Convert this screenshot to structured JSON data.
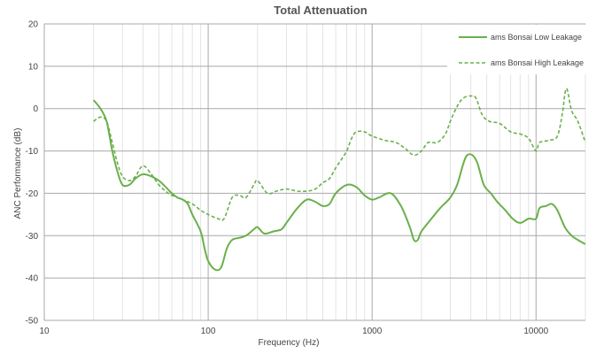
{
  "chart_data": {
    "type": "line",
    "title": "Total Attenuation",
    "xlabel": "Frequency (Hz)",
    "ylabel": "ANC Performance (dB)",
    "x_scale": "log",
    "xlim": [
      10,
      20000
    ],
    "ylim": [
      -50,
      20
    ],
    "x_ticks": [
      10,
      100,
      1000,
      10000
    ],
    "x_tick_labels": [
      "10",
      "100",
      "1000",
      "10000"
    ],
    "y_ticks": [
      -50,
      -40,
      -30,
      -20,
      -10,
      0,
      10,
      20
    ],
    "y_tick_labels": [
      "-50",
      "-40",
      "-30",
      "-20",
      "-10",
      "0",
      "10",
      "20"
    ],
    "grid": true,
    "legend_position": "top-right",
    "series": [
      {
        "name": "ams Bonsai Low Leakage",
        "style": "solid",
        "color": "#6ab04c",
        "points": [
          [
            20,
            2
          ],
          [
            22,
            0
          ],
          [
            24,
            -3
          ],
          [
            26,
            -10
          ],
          [
            28,
            -15
          ],
          [
            30,
            -18
          ],
          [
            33,
            -18
          ],
          [
            36,
            -16.5
          ],
          [
            40,
            -15.5
          ],
          [
            45,
            -16
          ],
          [
            50,
            -17
          ],
          [
            55,
            -18.5
          ],
          [
            60,
            -20
          ],
          [
            65,
            -21
          ],
          [
            70,
            -21.5
          ],
          [
            75,
            -22.5
          ],
          [
            80,
            -25
          ],
          [
            90,
            -29
          ],
          [
            95,
            -33
          ],
          [
            100,
            -36
          ],
          [
            110,
            -38
          ],
          [
            120,
            -37.5
          ],
          [
            130,
            -33
          ],
          [
            140,
            -31
          ],
          [
            155,
            -30.5
          ],
          [
            170,
            -30
          ],
          [
            190,
            -28.5
          ],
          [
            200,
            -28
          ],
          [
            220,
            -29.5
          ],
          [
            250,
            -29
          ],
          [
            280,
            -28.5
          ],
          [
            300,
            -27
          ],
          [
            350,
            -23.5
          ],
          [
            400,
            -21.5
          ],
          [
            450,
            -22
          ],
          [
            500,
            -23
          ],
          [
            550,
            -22.5
          ],
          [
            600,
            -20
          ],
          [
            700,
            -18
          ],
          [
            800,
            -18.5
          ],
          [
            900,
            -20.5
          ],
          [
            1000,
            -21.5
          ],
          [
            1100,
            -21
          ],
          [
            1300,
            -20
          ],
          [
            1500,
            -23
          ],
          [
            1700,
            -28
          ],
          [
            1800,
            -31
          ],
          [
            1900,
            -31
          ],
          [
            2000,
            -29
          ],
          [
            2300,
            -26
          ],
          [
            2600,
            -23.5
          ],
          [
            3000,
            -21
          ],
          [
            3300,
            -18
          ],
          [
            3600,
            -13
          ],
          [
            3800,
            -11
          ],
          [
            4100,
            -11
          ],
          [
            4400,
            -13
          ],
          [
            4800,
            -18
          ],
          [
            5300,
            -20
          ],
          [
            5800,
            -22
          ],
          [
            6500,
            -24
          ],
          [
            7200,
            -26
          ],
          [
            8000,
            -27
          ],
          [
            9000,
            -26
          ],
          [
            10000,
            -26
          ],
          [
            10500,
            -23.5
          ],
          [
            11500,
            -23
          ],
          [
            12500,
            -22.5
          ],
          [
            13500,
            -24
          ],
          [
            15000,
            -28
          ],
          [
            16500,
            -30
          ],
          [
            18000,
            -31
          ],
          [
            20000,
            -32
          ]
        ]
      },
      {
        "name": "ams Bonsai High Leakage",
        "style": "dashed",
        "color": "#6ab04c",
        "points": [
          [
            20,
            -3
          ],
          [
            22,
            -2
          ],
          [
            24,
            -3
          ],
          [
            26,
            -8
          ],
          [
            28,
            -13
          ],
          [
            30,
            -16
          ],
          [
            33,
            -17
          ],
          [
            36,
            -16
          ],
          [
            40,
            -13.5
          ],
          [
            45,
            -15.5
          ],
          [
            50,
            -18
          ],
          [
            55,
            -19.5
          ],
          [
            60,
            -20.5
          ],
          [
            70,
            -21.5
          ],
          [
            80,
            -22.5
          ],
          [
            90,
            -24
          ],
          [
            100,
            -25
          ],
          [
            115,
            -26
          ],
          [
            125,
            -26
          ],
          [
            140,
            -21
          ],
          [
            155,
            -20.5
          ],
          [
            170,
            -21
          ],
          [
            190,
            -18
          ],
          [
            200,
            -17
          ],
          [
            230,
            -20
          ],
          [
            260,
            -19.5
          ],
          [
            300,
            -19
          ],
          [
            350,
            -19.5
          ],
          [
            400,
            -19.5
          ],
          [
            450,
            -19
          ],
          [
            500,
            -17.5
          ],
          [
            550,
            -16.5
          ],
          [
            600,
            -14
          ],
          [
            650,
            -12
          ],
          [
            700,
            -10
          ],
          [
            750,
            -7
          ],
          [
            800,
            -5.5
          ],
          [
            900,
            -5.5
          ],
          [
            1000,
            -6.5
          ],
          [
            1200,
            -7.5
          ],
          [
            1400,
            -8
          ],
          [
            1600,
            -9.5
          ],
          [
            1800,
            -11
          ],
          [
            2000,
            -10
          ],
          [
            2200,
            -8
          ],
          [
            2500,
            -8
          ],
          [
            2800,
            -6
          ],
          [
            3000,
            -3
          ],
          [
            3300,
            0.5
          ],
          [
            3600,
            2.5
          ],
          [
            4000,
            3
          ],
          [
            4300,
            2.5
          ],
          [
            4700,
            -1.5
          ],
          [
            5200,
            -3
          ],
          [
            6000,
            -3.5
          ],
          [
            7000,
            -5.5
          ],
          [
            8000,
            -6
          ],
          [
            9000,
            -7
          ],
          [
            10000,
            -10
          ],
          [
            10500,
            -8
          ],
          [
            12000,
            -7.5
          ],
          [
            13500,
            -6.5
          ],
          [
            14500,
            -1
          ],
          [
            15000,
            3.5
          ],
          [
            15500,
            4.5
          ],
          [
            16500,
            -0.5
          ],
          [
            18000,
            -3
          ],
          [
            20000,
            -8
          ]
        ]
      }
    ]
  }
}
